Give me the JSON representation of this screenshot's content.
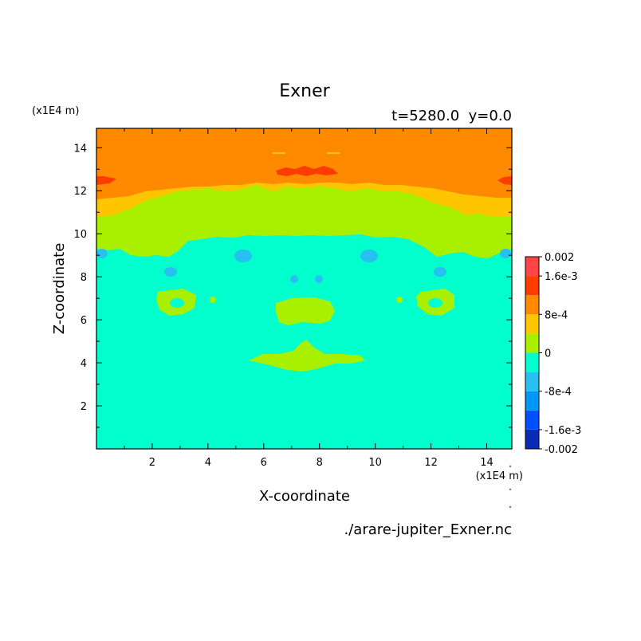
{
  "chart_data": {
    "type": "heatmap",
    "title": "Exner",
    "subtitle": "t=5280.0  y=0.0",
    "xlabel": "X-coordinate",
    "ylabel": "Z-coordinate",
    "x_unit_label": "(x1E4 m)",
    "y_unit_label": "(x1E4 m)",
    "xlim": [
      0,
      14.9
    ],
    "ylim": [
      0,
      14.9
    ],
    "x_ticks": [
      "2",
      "4",
      "6",
      "8",
      "10",
      "12",
      "14"
    ],
    "y_ticks": [
      "2",
      "4",
      "6",
      "8",
      "10",
      "12",
      "14"
    ],
    "file_label": "./arare-jupiter_Exner.nc",
    "colorbar": {
      "levels": [
        -0.002,
        -0.0016,
        -0.0012,
        -0.0008,
        -0.0004,
        0,
        0.0004,
        0.0008,
        0.0012,
        0.0016,
        0.002
      ],
      "colors": [
        "#0a2bb5",
        "#0050ff",
        "#0098f6",
        "#28bff2",
        "#00ffcc",
        "#a8f000",
        "#ffc500",
        "#ff8a00",
        "#ff3c00",
        "#ff4545"
      ],
      "labels": [
        {
          "value": 0.002,
          "text": "0.002"
        },
        {
          "value": 0.0016,
          "text": "1.6e-3"
        },
        {
          "value": 0.0008,
          "text": "8e-4"
        },
        {
          "value": 0,
          "text": "0"
        },
        {
          "value": -0.0008,
          "text": "-8e-4"
        },
        {
          "value": -0.0016,
          "text": "-1.6e-3"
        },
        {
          "value": -0.002,
          "text": "-0.002"
        }
      ]
    },
    "field_colors": {
      "background": "#00ffcc",
      "positive_low": "#a8f000",
      "positive_mid": "#ffc500",
      "positive_high": "#ff8a00",
      "positive_max": "#ff3c00",
      "negative_low": "#28bff2"
    }
  }
}
